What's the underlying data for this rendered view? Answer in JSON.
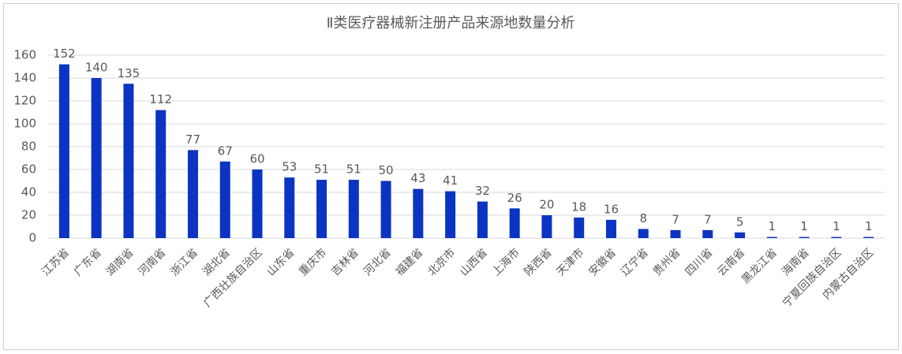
{
  "chart_data": {
    "type": "bar",
    "title": "Ⅱ类医疗器械新注册产品来源地数量分析",
    "categories": [
      "江苏省",
      "广东省",
      "湖南省",
      "河南省",
      "浙江省",
      "湖北省",
      "广西壮族自治区",
      "山东省",
      "重庆市",
      "吉林省",
      "河北省",
      "福建省",
      "北京市",
      "山西省",
      "上海市",
      "陕西省",
      "天津市",
      "安徽省",
      "辽宁省",
      "贵州省",
      "四川省",
      "云南省",
      "黑龙江省",
      "海南省",
      "宁夏回族自治区",
      "内蒙古自治区"
    ],
    "values": [
      152,
      140,
      135,
      112,
      77,
      67,
      60,
      53,
      51,
      51,
      50,
      43,
      41,
      32,
      26,
      20,
      18,
      16,
      8,
      7,
      7,
      5,
      1,
      1,
      1,
      1
    ],
    "color": "#0b34c2",
    "ylim": [
      0,
      160
    ],
    "yticks": [
      0,
      20,
      40,
      60,
      80,
      100,
      120,
      140,
      160
    ],
    "grid": true
  }
}
